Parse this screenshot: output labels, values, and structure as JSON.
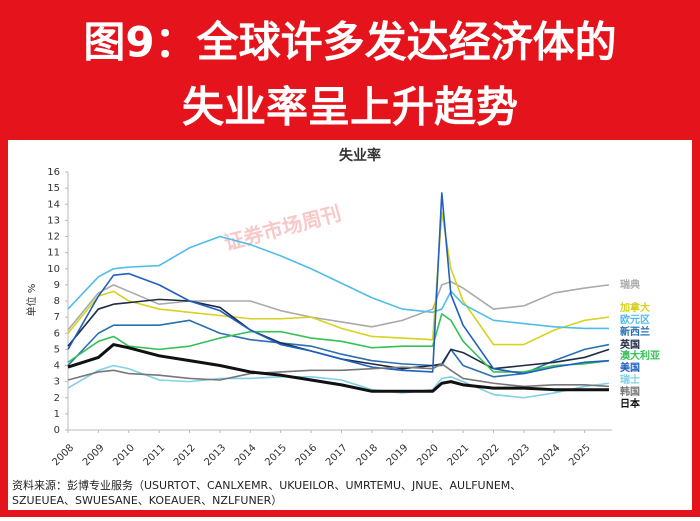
{
  "chart_data": {
    "type": "line",
    "title_lines": [
      "图9：全球许多发达经济体的",
      "失业率呈上升趋势"
    ],
    "subtitle": "失业率",
    "ylabel": "单位 %",
    "watermark": "证券市场周刊",
    "source_lines": [
      "资料来源：彭博专业服务（USURTOT、CANLXEMR、UKUEILOR、UMRTEMU、JNUE、AULFUNEM、",
      "SZUEUEA、SWUESANE、KOEAUER、NZLFUNER）"
    ],
    "x": [
      2008,
      2009,
      2009.5,
      2010,
      2011,
      2012,
      2013,
      2014,
      2015,
      2016,
      2017,
      2018,
      2019,
      2020,
      2020.3,
      2020.6,
      2021,
      2022,
      2023,
      2024,
      2025,
      2025.8
    ],
    "xlim": [
      2008,
      2025.9
    ],
    "xticks": [
      2008,
      2009,
      2010,
      2011,
      2012,
      2013,
      2014,
      2015,
      2016,
      2017,
      2018,
      2019,
      2020,
      2021,
      2022,
      2023,
      2024,
      2025
    ],
    "ylim": [
      0,
      16
    ],
    "yticks": [
      0,
      1,
      2,
      3,
      4,
      5,
      6,
      7,
      8,
      9,
      10,
      11,
      12,
      13,
      14,
      15,
      16
    ],
    "grid": false,
    "series": [
      {
        "name": "瑞典",
        "color": "#aaaaaa",
        "values": [
          6.2,
          8.5,
          9,
          8.6,
          7.8,
          8,
          8,
          8,
          7.4,
          7,
          6.7,
          6.4,
          6.8,
          7.5,
          9,
          9.2,
          8.8,
          7.5,
          7.7,
          8.5,
          8.8,
          9
        ]
      },
      {
        "name": "加拿大",
        "color": "#d6d21e",
        "values": [
          6,
          8.3,
          8.6,
          8,
          7.5,
          7.3,
          7.1,
          6.9,
          6.9,
          7,
          6.3,
          5.8,
          5.7,
          5.6,
          13.5,
          10,
          8,
          5.3,
          5.3,
          6.2,
          6.8,
          7
        ]
      },
      {
        "name": "欧元区",
        "color": "#4fbde8",
        "values": [
          7.5,
          9.5,
          10,
          10.1,
          10.2,
          11.3,
          12,
          11.5,
          10.8,
          10,
          9.1,
          8.2,
          7.5,
          7.3,
          7.5,
          8.6,
          7.8,
          6.8,
          6.6,
          6.4,
          6.3,
          6.3
        ]
      },
      {
        "name": "新西兰",
        "color": "#2a6fb0",
        "values": [
          4,
          6,
          6.5,
          6.5,
          6.5,
          6.8,
          6,
          5.6,
          5.4,
          5.2,
          4.7,
          4.3,
          4.1,
          4,
          4,
          5,
          4,
          3.3,
          3.5,
          4.3,
          5,
          5.3
        ]
      },
      {
        "name": "英国",
        "color": "#1f2a44",
        "values": [
          5.2,
          7.5,
          7.8,
          7.9,
          8.1,
          8,
          7.6,
          6.2,
          5.4,
          4.9,
          4.4,
          4.1,
          3.8,
          4,
          4.1,
          5,
          4.8,
          3.8,
          4,
          4.2,
          4.5,
          5
        ]
      },
      {
        "name": "澳大利亚",
        "color": "#34c155",
        "values": [
          4.2,
          5.5,
          5.8,
          5.2,
          5,
          5.2,
          5.7,
          6.1,
          6.1,
          5.7,
          5.5,
          5.1,
          5.2,
          5.2,
          7.2,
          6.8,
          5.5,
          3.6,
          3.6,
          4,
          4.1,
          4.3
        ]
      },
      {
        "name": "美国",
        "color": "#1f5fbf",
        "values": [
          5,
          8.3,
          9.6,
          9.7,
          9,
          8,
          7.4,
          6.2,
          5.3,
          4.9,
          4.4,
          3.9,
          3.7,
          3.6,
          14.7,
          8.4,
          6.5,
          3.8,
          3.5,
          3.9,
          4.2,
          4.3
        ]
      },
      {
        "name": "瑞士",
        "color": "#7fd0e8",
        "values": [
          2.6,
          3.7,
          4,
          3.8,
          3.1,
          3,
          3.2,
          3.2,
          3.3,
          3.3,
          3.1,
          2.5,
          2.3,
          2.5,
          3.2,
          3.3,
          3,
          2.2,
          2,
          2.3,
          2.7,
          2.9
        ]
      },
      {
        "name": "韩国",
        "color": "#777777",
        "values": [
          3.1,
          3.6,
          3.7,
          3.5,
          3.4,
          3.2,
          3.1,
          3.5,
          3.6,
          3.7,
          3.7,
          3.8,
          3.9,
          3.8,
          4.1,
          3.7,
          3.2,
          2.9,
          2.7,
          2.8,
          2.8,
          2.7
        ]
      },
      {
        "name": "日本",
        "color": "#111111",
        "values": [
          3.9,
          4.5,
          5.3,
          5.1,
          4.6,
          4.3,
          4,
          3.6,
          3.4,
          3.1,
          2.8,
          2.4,
          2.4,
          2.4,
          2.9,
          3,
          2.8,
          2.6,
          2.6,
          2.5,
          2.5,
          2.5
        ]
      }
    ]
  }
}
